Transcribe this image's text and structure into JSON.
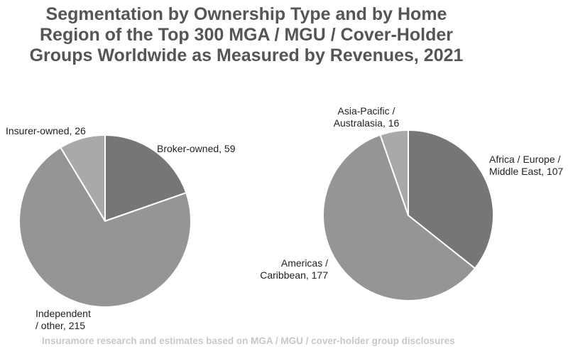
{
  "title_lines": [
    "Segmentation by Ownership Type and by Home",
    "Region of the Top 300 MGA / MGU / Cover-Holder",
    "Groups Worldwide as Measured by Revenues, 2021"
  ],
  "footer": "Insuramore research and estimates based on MGA / MGU / cover-holder group disclosures",
  "chart_data": [
    {
      "type": "pie",
      "title": "",
      "categories": [
        "Broker-owned",
        "Independent / other",
        "Insurer-owned"
      ],
      "values": [
        59,
        215,
        26
      ],
      "colors": [
        "#767676",
        "#959595",
        "#a9a9a9"
      ],
      "label_lines": [
        [
          "Broker-owned, 59"
        ],
        [
          "Independent",
          "/ other, 215"
        ],
        [
          "Insurer-owned, 26"
        ]
      ]
    },
    {
      "type": "pie",
      "title": "",
      "categories": [
        "Africa / Europe / Middle East",
        "Americas / Caribbean",
        "Asia-Pacific / Australasia"
      ],
      "values": [
        107,
        177,
        16
      ],
      "colors": [
        "#767676",
        "#959595",
        "#a9a9a9"
      ],
      "label_lines": [
        [
          "Africa / Europe /",
          "Middle East, 107"
        ],
        [
          "Americas /",
          "Caribbean, 177"
        ],
        [
          "Asia-Pacific /",
          "Australasia, 16"
        ]
      ]
    }
  ]
}
